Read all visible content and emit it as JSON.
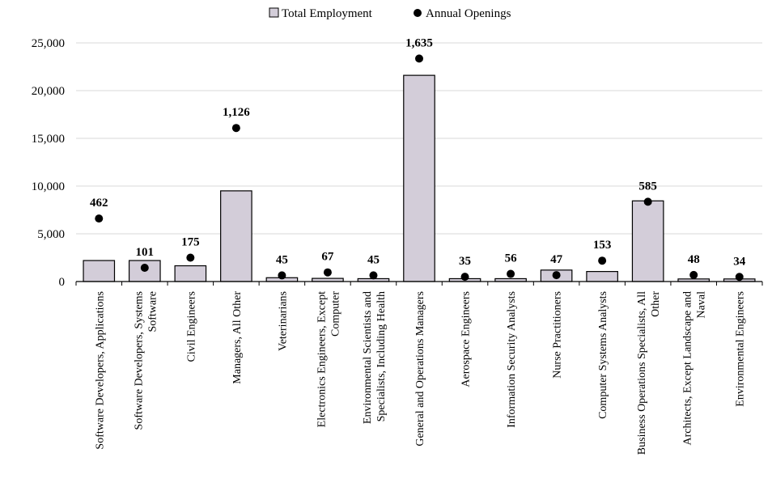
{
  "chart_data": {
    "type": "bar",
    "legend": {
      "position": "top-center",
      "entries": [
        {
          "label": "Total Employment",
          "marker": "bar"
        },
        {
          "label": "Annual Openings",
          "marker": "dot"
        }
      ]
    },
    "categories": [
      [
        "Software Developers, Applications"
      ],
      [
        "Software Developers, Systems",
        "Software"
      ],
      [
        "Civil Engineers"
      ],
      [
        "Managers, All Other"
      ],
      [
        "Veterinarians"
      ],
      [
        "Electronics Engineers, Except",
        "Computer"
      ],
      [
        "Environmental Scientists and",
        "Specialists, Including Health"
      ],
      [
        "General and Operations Managers"
      ],
      [
        "Aerospace Engineers"
      ],
      [
        "Information Security Analysts"
      ],
      [
        "Nurse Practitioners"
      ],
      [
        "Computer Systems Analysts"
      ],
      [
        "Business Operations Specialists, All",
        "Other"
      ],
      [
        "Architects, Except Landscape and",
        "Naval"
      ],
      [
        "Environmental Engineers"
      ]
    ],
    "series": [
      {
        "name": "Total Employment",
        "type": "bar",
        "values": [
          2200,
          2200,
          1650,
          9500,
          400,
          330,
          300,
          21600,
          300,
          300,
          1200,
          1050,
          8450,
          270,
          270
        ]
      },
      {
        "name": "Annual Openings",
        "type": "scatter",
        "values": [
          462,
          101,
          175,
          1126,
          45,
          67,
          45,
          1635,
          35,
          56,
          47,
          153,
          585,
          48,
          34
        ],
        "value_labels": [
          "462",
          "101",
          "175",
          "1,126",
          "45",
          "67",
          "45",
          "1,635",
          "35",
          "56",
          "47",
          "153",
          "585",
          "48",
          "34"
        ]
      }
    ],
    "y_axis": {
      "min": 0,
      "max": 25000,
      "ticks": [
        0,
        5000,
        10000,
        15000,
        20000,
        25000
      ],
      "tick_labels": [
        "0",
        "5,000",
        "10,000",
        "15,000",
        "20,000",
        "25,000"
      ]
    },
    "grid": true,
    "colors": {
      "bar_fill": "#d3cdd9",
      "bar_stroke": "#000000",
      "dot": "#000000",
      "grid": "#d9d9d9"
    }
  }
}
